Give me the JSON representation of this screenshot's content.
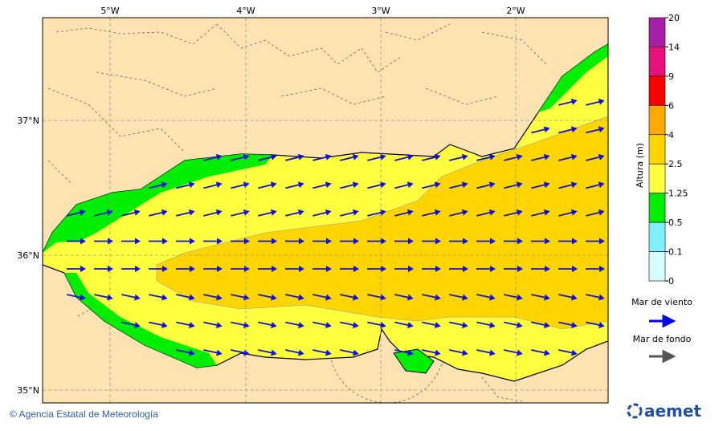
{
  "map": {
    "lon_labels": [
      "5°W",
      "4°W",
      "3°W",
      "2°W"
    ],
    "lat_labels": [
      "37°N",
      "36°N",
      "35°N"
    ]
  },
  "legend": {
    "title": "Altura (m)",
    "levels": [
      20,
      14,
      9,
      6,
      4,
      2.5,
      1.25,
      0.5,
      0.1,
      0
    ],
    "colors": [
      "#a61fa6",
      "#e8127c",
      "#ff0000",
      "#ffaa00",
      "#ffd500",
      "#ffff40",
      "#00ee00",
      "#80f0ff",
      "#d8ffff"
    ],
    "wind_sea": "Mar de viento",
    "swell": "Mar de fondo"
  },
  "footer": {
    "credit": "© Agencia Estatal de Meteorología",
    "logo": "aemet"
  }
}
